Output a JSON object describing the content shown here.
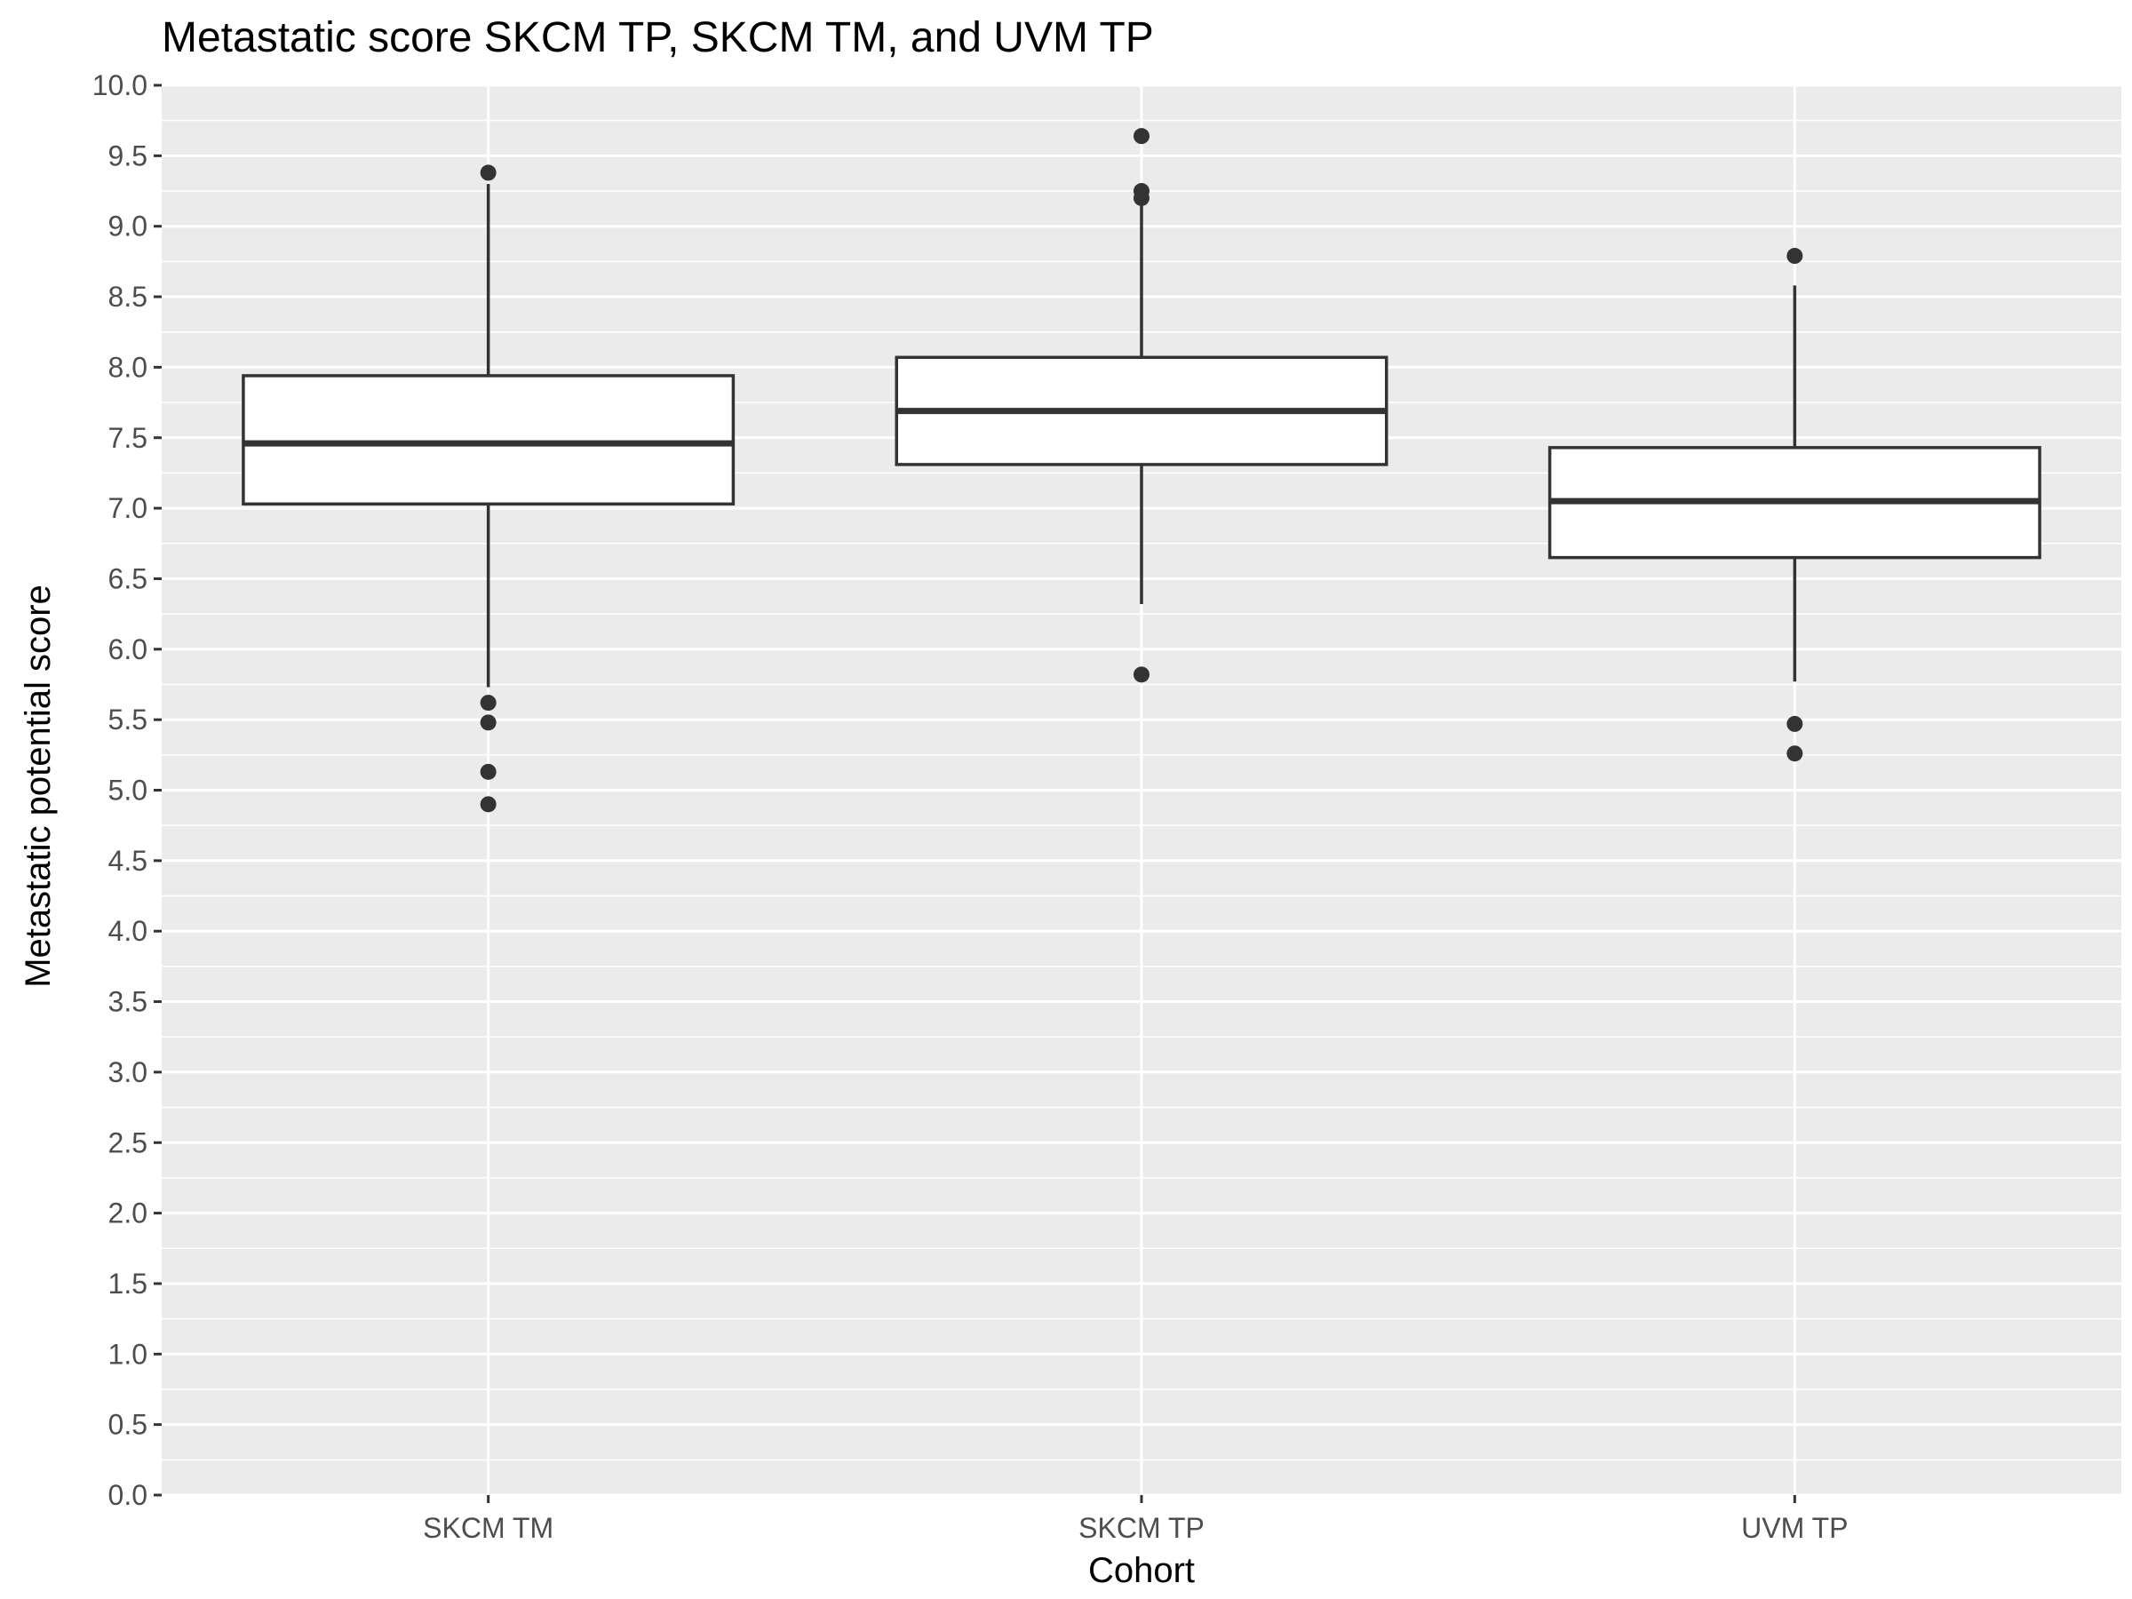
{
  "chart_data": {
    "type": "boxplot",
    "title": "Metastatic score SKCM TP, SKCM TM, and UVM TP",
    "xlabel": "Cohort",
    "ylabel": "Metastatic potential score",
    "ylim": [
      0,
      10
    ],
    "y_ticks": [
      "0.0",
      "0.5",
      "1.0",
      "1.5",
      "2.0",
      "2.5",
      "3.0",
      "3.5",
      "4.0",
      "4.5",
      "5.0",
      "5.5",
      "6.0",
      "6.5",
      "7.0",
      "7.5",
      "8.0",
      "8.5",
      "9.0",
      "9.5",
      "10.0"
    ],
    "categories": [
      "SKCM TM",
      "SKCM TP",
      "UVM TP"
    ],
    "boxes": [
      {
        "category": "SKCM TM",
        "whisker_low": 5.73,
        "q1": 7.03,
        "median": 7.46,
        "q3": 7.94,
        "whisker_high": 9.3,
        "outliers": [
          9.38,
          5.62,
          5.48,
          5.13,
          4.9
        ]
      },
      {
        "category": "SKCM TP",
        "whisker_low": 6.32,
        "q1": 7.31,
        "median": 7.69,
        "q3": 8.07,
        "whisker_high": 9.18,
        "outliers": [
          9.64,
          9.25,
          9.2,
          5.82
        ]
      },
      {
        "category": "UVM TP",
        "whisker_low": 5.77,
        "q1": 6.65,
        "median": 7.05,
        "q3": 7.43,
        "whisker_high": 8.58,
        "outliers": [
          8.79,
          5.47,
          5.26
        ]
      }
    ],
    "grid": true,
    "colors": {
      "panel_background": "#ebebeb",
      "grid_line": "#ffffff",
      "box_fill": "#ffffff",
      "box_line": "#333333",
      "tick_label": "#4d4d4d",
      "tick_mark": "#333333"
    }
  }
}
